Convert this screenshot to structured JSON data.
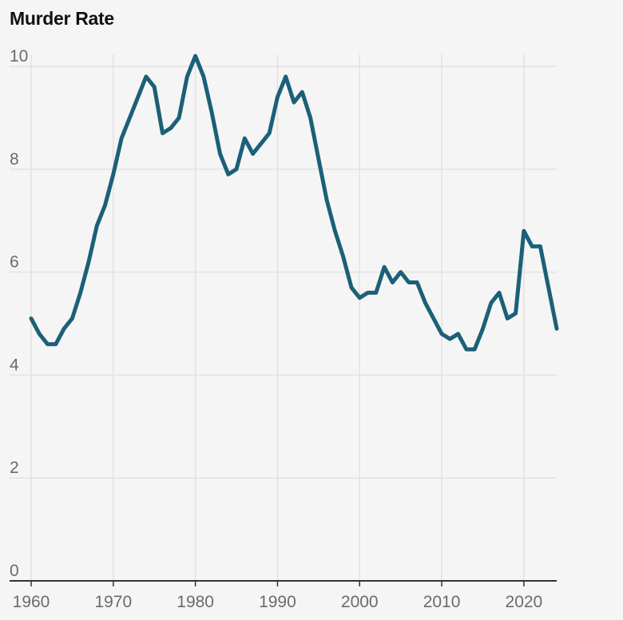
{
  "chart_data": {
    "type": "line",
    "title": "Murder Rate",
    "xlabel": "",
    "ylabel": "",
    "xlim": [
      1960,
      2024
    ],
    "ylim": [
      0,
      10
    ],
    "x_ticks": [
      1960,
      1970,
      1980,
      1990,
      2000,
      2010,
      2020
    ],
    "y_ticks": [
      0,
      2,
      4,
      6,
      8,
      10
    ],
    "grid": true,
    "legend": "none",
    "series": [
      {
        "color": "#1b6078",
        "x": [
          1960,
          1961,
          1962,
          1963,
          1964,
          1965,
          1966,
          1967,
          1968,
          1969,
          1970,
          1971,
          1972,
          1973,
          1974,
          1975,
          1976,
          1977,
          1978,
          1979,
          1980,
          1981,
          1982,
          1983,
          1984,
          1985,
          1986,
          1987,
          1988,
          1989,
          1990,
          1991,
          1992,
          1993,
          1994,
          1995,
          1996,
          1997,
          1998,
          1999,
          2000,
          2001,
          2002,
          2003,
          2004,
          2005,
          2006,
          2007,
          2008,
          2009,
          2010,
          2011,
          2012,
          2013,
          2014,
          2015,
          2016,
          2017,
          2018,
          2019,
          2020,
          2021,
          2022,
          2023,
          2024
        ],
        "y": [
          5.1,
          4.8,
          4.6,
          4.6,
          4.9,
          5.1,
          5.6,
          6.2,
          6.9,
          7.3,
          7.9,
          8.6,
          9.0,
          9.4,
          9.8,
          9.6,
          8.7,
          8.8,
          9.0,
          9.8,
          10.2,
          9.8,
          9.1,
          8.3,
          7.9,
          8.0,
          8.6,
          8.3,
          8.5,
          8.7,
          9.4,
          9.8,
          9.3,
          9.5,
          9.0,
          8.2,
          7.4,
          6.8,
          6.3,
          5.7,
          5.5,
          5.6,
          5.6,
          6.1,
          5.8,
          6.0,
          5.8,
          5.8,
          5.4,
          5.1,
          4.8,
          4.7,
          4.8,
          4.5,
          4.5,
          4.9,
          5.4,
          5.6,
          5.1,
          5.2,
          6.8,
          6.5,
          6.5,
          5.7,
          4.9
        ]
      }
    ],
    "colors": {
      "background": "#f5f5f5",
      "grid": "#e2e2e2",
      "axis": "#333333",
      "line": "#1b6078"
    }
  }
}
